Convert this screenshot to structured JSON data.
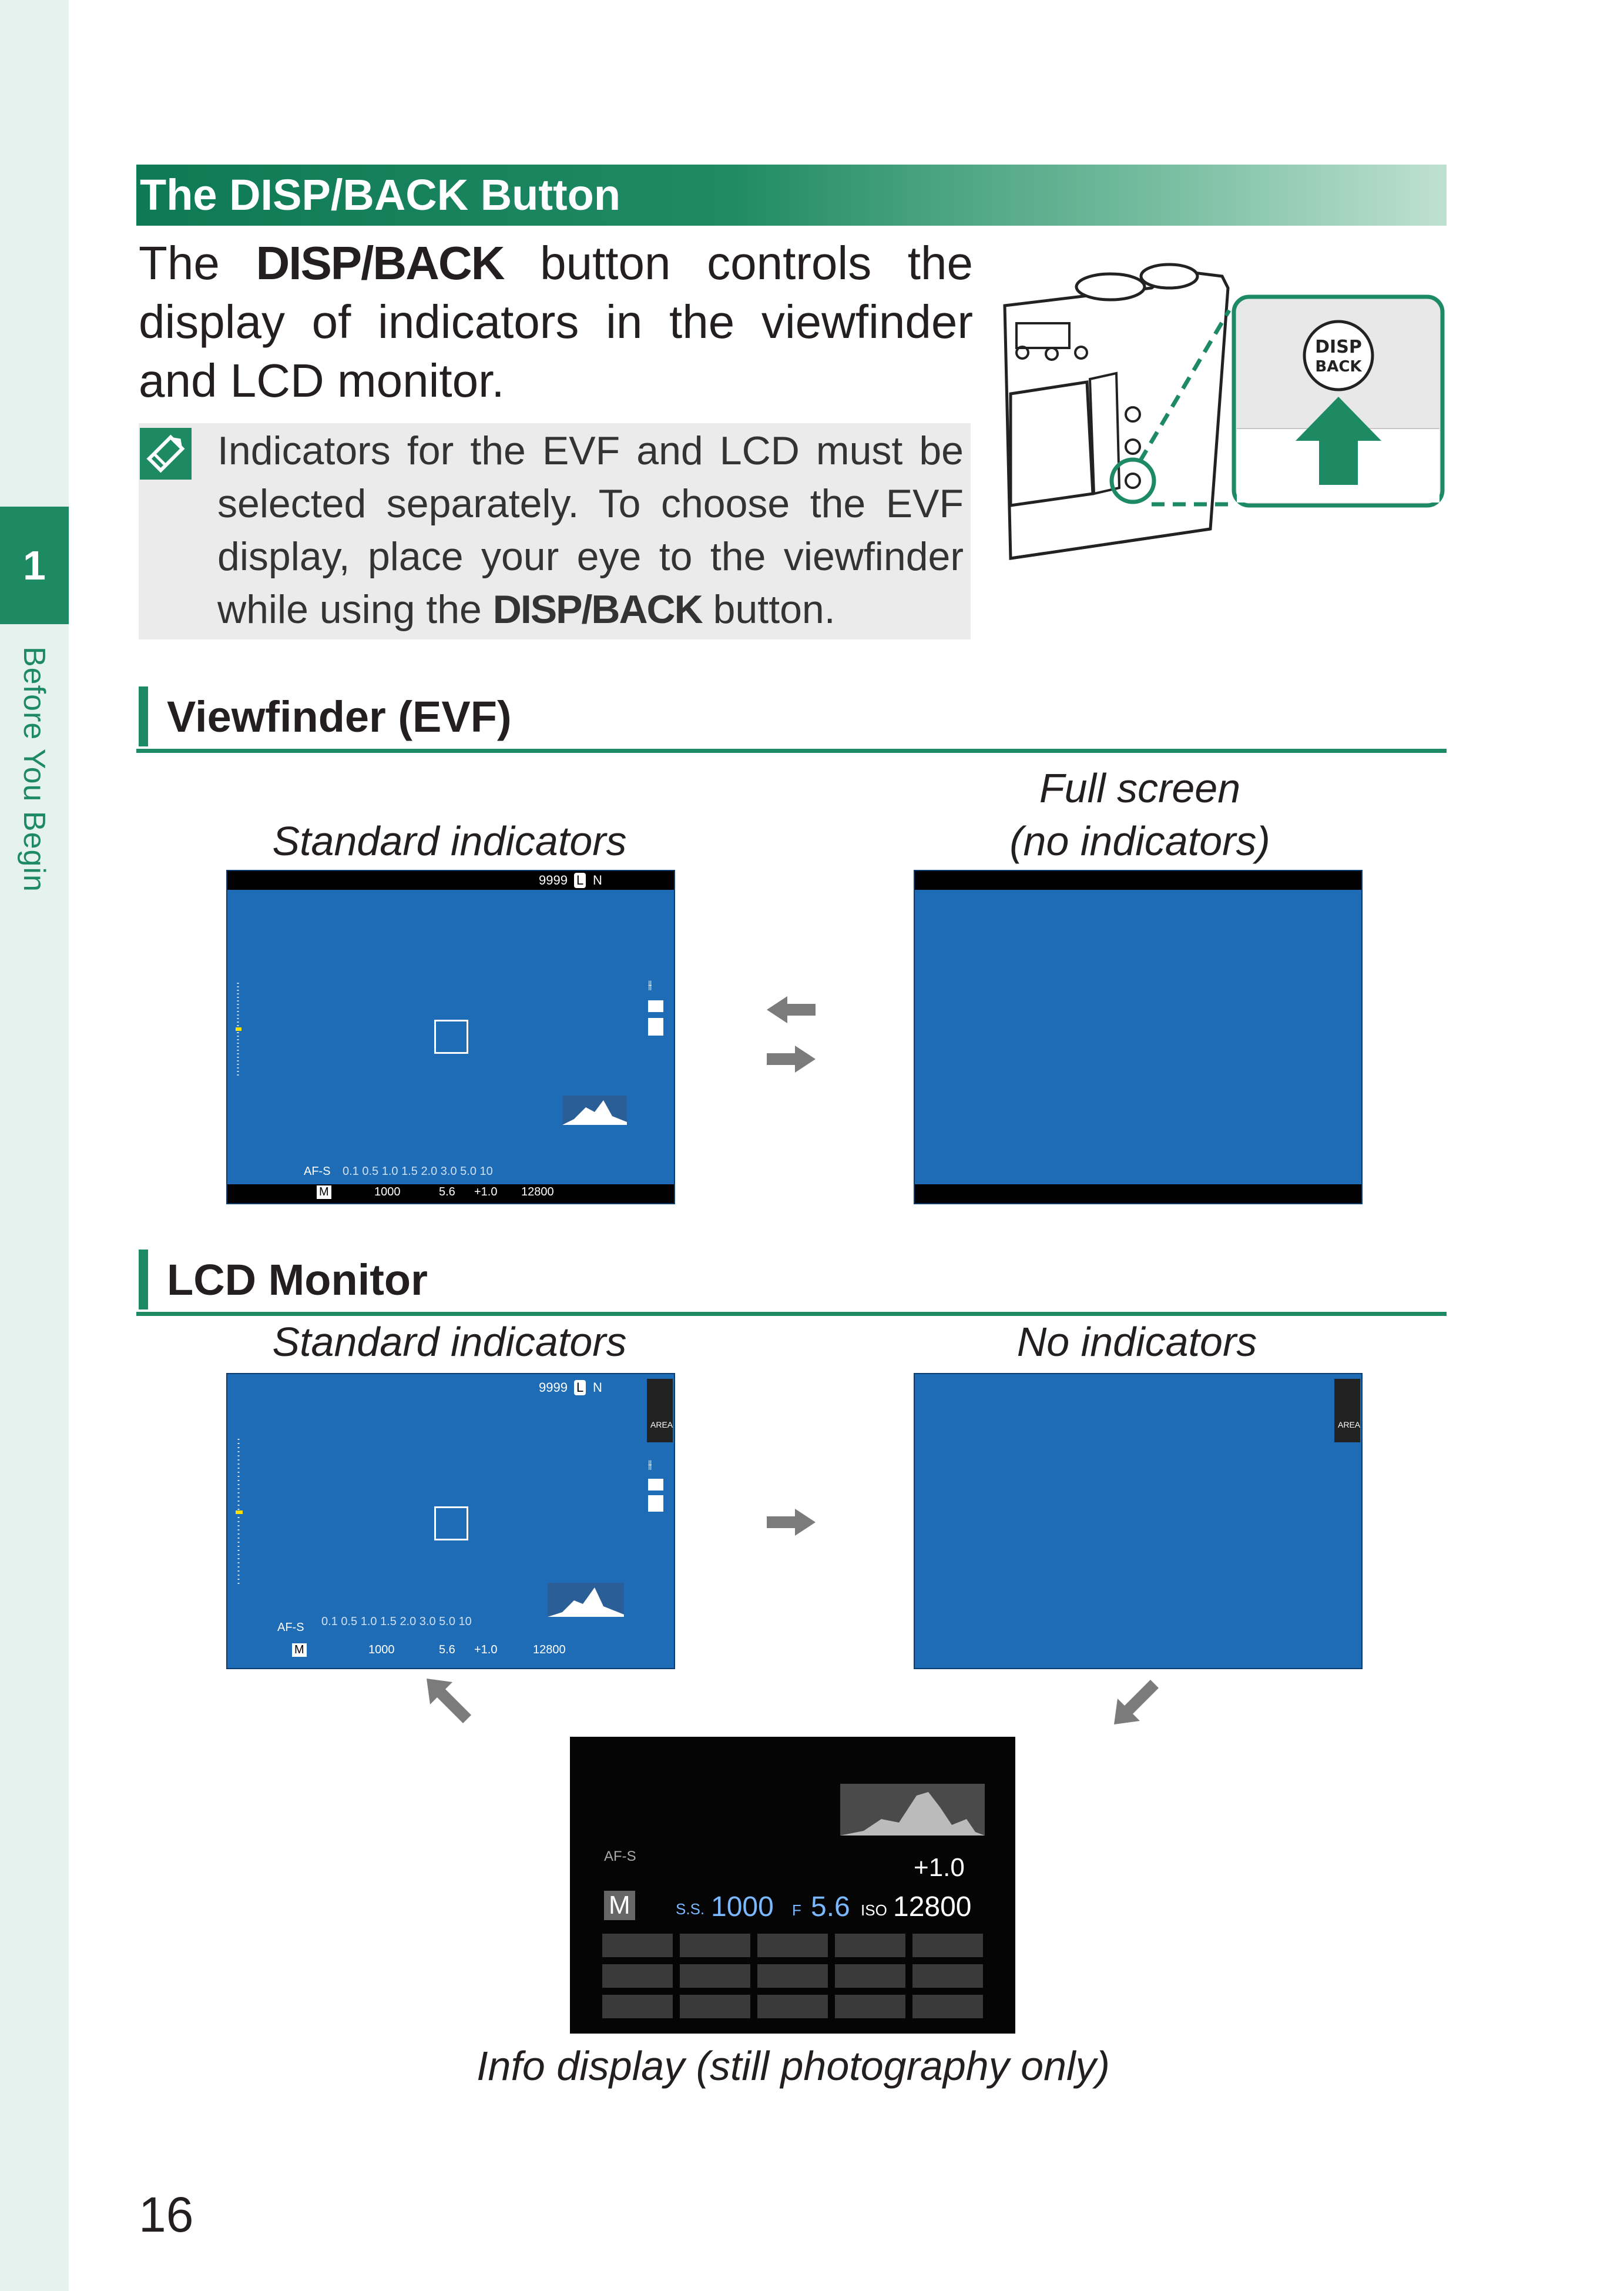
{
  "side": {
    "chapter_number": "1",
    "chapter_title": "Before You Begin"
  },
  "section": {
    "title": "The DISP/BACK Button"
  },
  "intro": {
    "pre": "The ",
    "button": "DISP/BACK",
    "post": " button controls the display of indicators in the viewfinder and LCD monitor."
  },
  "note": {
    "pre": "Indicators for the EVF and LCD must be selected separately. To choose the EVF display, place your eye to the viewfinder while using the ",
    "button": "DISP/BACK",
    "post": " button."
  },
  "illustration": {
    "button_label_line1": "DISP",
    "button_label_line2": "BACK"
  },
  "evf": {
    "heading": "Viewfinder (EVF)",
    "left_caption": "Standard indicators",
    "right_caption_line1": "Full screen",
    "right_caption_line2": "(no indicators)"
  },
  "lcd": {
    "heading": "LCD Monitor",
    "left_caption": "Standard indicators",
    "right_caption": "No indicators"
  },
  "screen_standard": {
    "frames": "9999",
    "image_size": "L",
    "quality": "N",
    "focus_mode": "AF-S",
    "mode": "M",
    "shutter": "1000",
    "aperture": "5.6",
    "ev": "+1.0",
    "iso": "12800",
    "distance_scale": "0.1  0.5    1.0    1.5    2.0    3.0   5.0  10",
    "area_label": "AREA"
  },
  "info_display": {
    "focus_mode": "AF-S",
    "mode": "M",
    "ss_label": "S.S.",
    "shutter": "1000",
    "f_label": "F",
    "aperture": "5.6",
    "iso_label": "ISO",
    "iso": "12800",
    "ev": "+1.0",
    "caption": "Info display (still photography only)"
  },
  "page_number": "16",
  "colors": {
    "brand_green": "#1d8a63",
    "screen_blue": "#1f6cb6",
    "arrow_gray": "#7b7b7b"
  }
}
